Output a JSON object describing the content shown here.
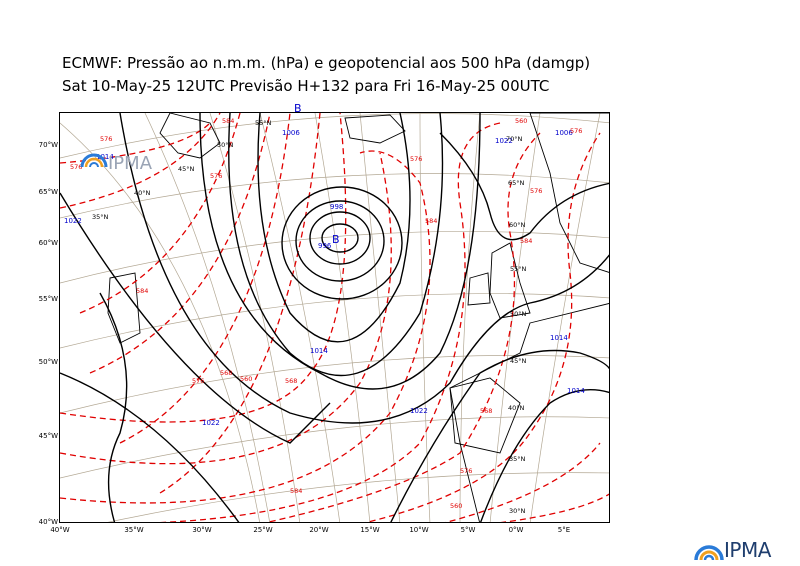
{
  "header": {
    "title_line1": "ECMWF:  Pressão ao n.m.m. (hPa) e geopotencial aos 500 hPa (damgp)",
    "title_line2": "Sat 10-May-25 12UTC Previsão H+132 para Fri 16-May-25 00UTC"
  },
  "axes": {
    "y_labels": [
      "70°W",
      "65°W",
      "60°W",
      "55°W",
      "50°W",
      "45°W",
      "40°W"
    ],
    "x_labels": [
      "40°W",
      "35°W",
      "30°W",
      "25°W",
      "20°W",
      "15°W",
      "10°W",
      "5°W",
      "0°W",
      "5°E"
    ]
  },
  "grid_labels": [
    "55°N",
    "50°N",
    "45°N",
    "40°N",
    "35°N",
    "70°N",
    "65°N",
    "60°N",
    "55°N",
    "50°N",
    "45°N",
    "40°N",
    "35°N",
    "30°N"
  ],
  "isobar_labels": [
    "1014",
    "1022",
    "998",
    "996",
    "1014",
    "1022",
    "1022",
    "1014",
    "1022",
    "1014",
    "1006",
    "1006"
  ],
  "geopotential_labels": [
    "576",
    "576",
    "576",
    "584",
    "584",
    "576",
    "568",
    "560",
    "568",
    "576",
    "584",
    "560",
    "576",
    "584",
    "576",
    "560",
    "568",
    "584",
    "576"
  ],
  "pressure_centers": [
    "B",
    "B"
  ],
  "logo": {
    "text": "IPMA"
  },
  "colors": {
    "isobar": "#000000",
    "geopotential": "#e00000",
    "isobar_label": "#0000cc",
    "graticule": "#a89a86",
    "logo_blue": "#1f3e6e"
  }
}
